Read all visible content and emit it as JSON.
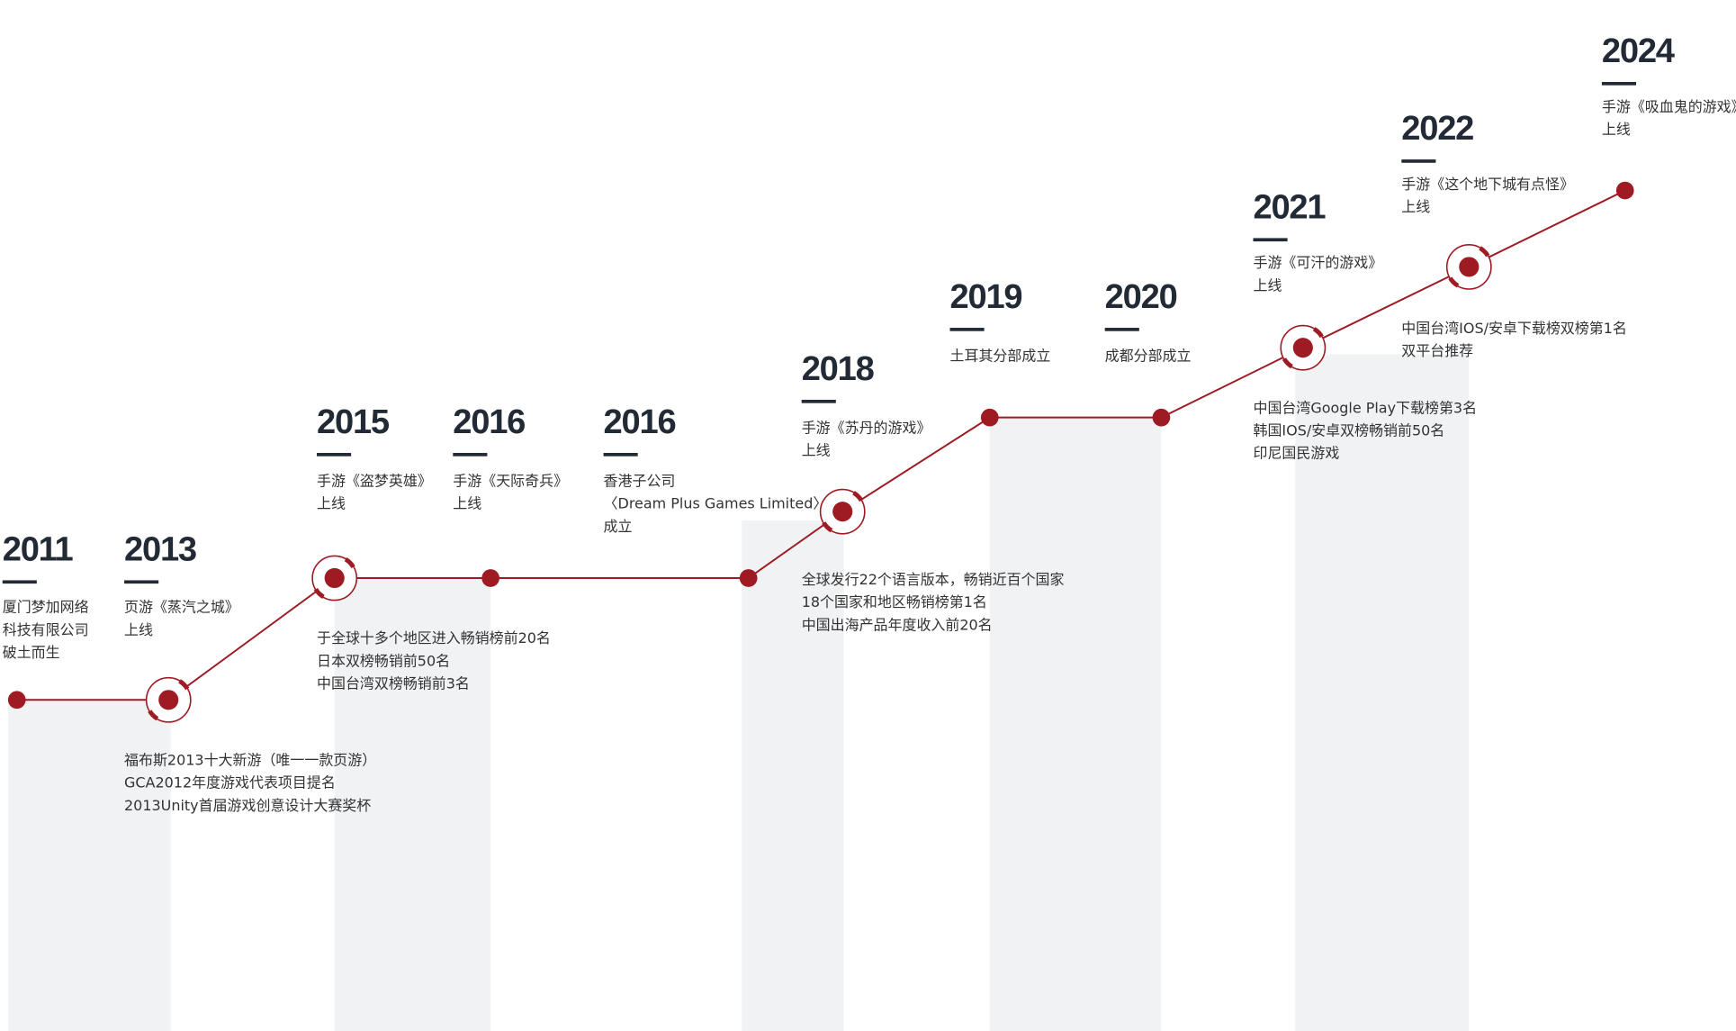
{
  "milestones": [
    {
      "year": "2011",
      "lines": [
        "厦门梦加网络",
        "科技有限公司",
        "破土而生"
      ]
    },
    {
      "year": "2013",
      "lines": [
        "页游《蒸汽之城》",
        "上线"
      ],
      "highlights": [
        "福布斯2013十大新游（唯一一款页游）",
        "GCA2012年度游戏代表项目提名",
        "2013Unity首届游戏创意设计大赛奖杯"
      ]
    },
    {
      "year": "2015",
      "lines": [
        "手游《盗梦英雄》",
        "上线"
      ],
      "highlights": [
        "于全球十多个地区进入畅销榜前20名",
        "日本双榜畅销前50名",
        "中国台湾双榜畅销前3名"
      ]
    },
    {
      "year": "2016",
      "lines": [
        "手游《天际奇兵》",
        "上线"
      ]
    },
    {
      "year": "2016",
      "lines": [
        "香港子公司",
        "〈Dream Plus  Games Limited〉",
        "成立"
      ]
    },
    {
      "year": "2018",
      "lines": [
        "手游《苏丹的游戏》",
        "上线"
      ],
      "highlights": [
        "全球发行22个语言版本，畅销近百个国家",
        "18个国家和地区畅销榜第1名",
        "中国出海产品年度收入前20名"
      ]
    },
    {
      "year": "2019",
      "lines": [
        "土耳其分部成立"
      ]
    },
    {
      "year": "2020",
      "lines": [
        "成都分部成立"
      ]
    },
    {
      "year": "2021",
      "lines": [
        "手游《可汗的游戏》",
        "上线"
      ],
      "highlights": [
        "中国台湾Google Play下载榜第3名",
        "韩国IOS/安卓双榜畅销前50名",
        "印尼国民游戏"
      ]
    },
    {
      "year": "2022",
      "lines": [
        "手游《这个地下城有点怪》",
        "上线"
      ],
      "highlights": [
        "中国台湾IOS/安卓下载榜双榜第1名",
        "双平台推荐"
      ]
    },
    {
      "year": "2024",
      "lines": [
        "手游《吸血鬼的游戏》",
        "上线"
      ]
    }
  ]
}
